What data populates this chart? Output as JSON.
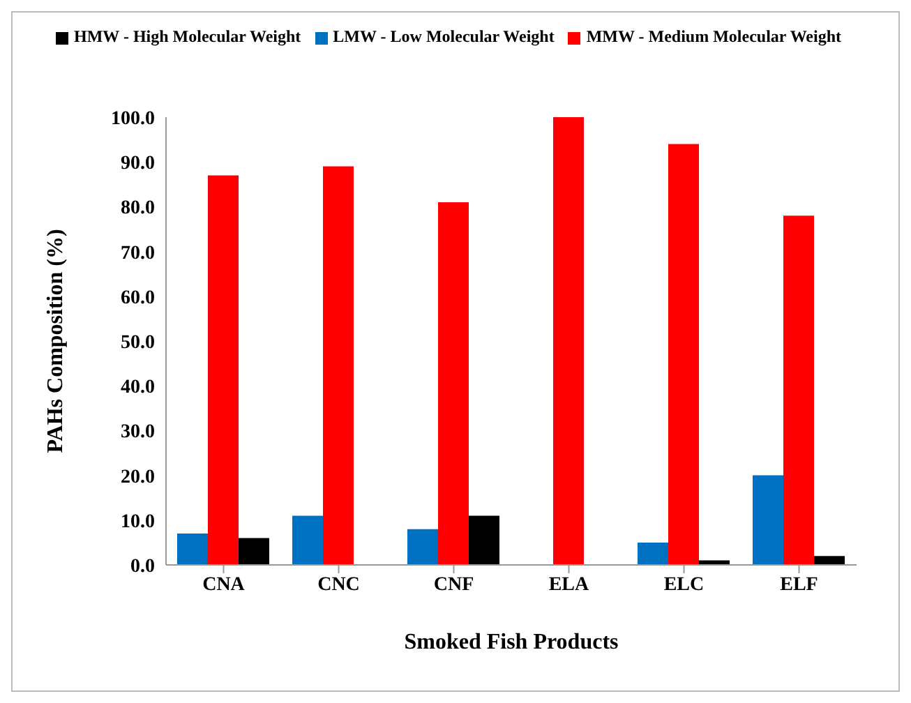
{
  "chart_data": {
    "type": "bar",
    "xlabel": "Smoked Fish Products",
    "ylabel": "PAHs Composition (%)",
    "categories": [
      "CNA",
      "CNC",
      "CNF",
      "ELA",
      "ELC",
      "ELF"
    ],
    "series": [
      {
        "name": "LMW - Low Molecular Weight",
        "color": "#0070c0",
        "values": [
          7,
          11,
          8,
          0,
          5,
          20
        ]
      },
      {
        "name": "MMW - Medium Molecular Weight",
        "color": "#ff0000",
        "values": [
          87,
          89,
          81,
          100,
          94,
          78
        ]
      },
      {
        "name": "HMW - High Molecular Weight",
        "color": "#000000",
        "values": [
          6,
          0,
          11,
          0,
          1,
          2
        ]
      }
    ],
    "ylim": [
      0,
      100
    ],
    "yticks": [
      {
        "value": 0,
        "label": "0.0"
      },
      {
        "value": 10,
        "label": "10.0"
      },
      {
        "value": 20,
        "label": "20.0"
      },
      {
        "value": 30,
        "label": "30.0"
      },
      {
        "value": 40,
        "label": "40.0"
      },
      {
        "value": 50,
        "label": "50.0"
      },
      {
        "value": 60,
        "label": "60.0"
      },
      {
        "value": 70,
        "label": "70.0"
      },
      {
        "value": 80,
        "label": "80.0"
      },
      {
        "value": 90,
        "label": "90.0"
      },
      {
        "value": 100,
        "label": "100.0"
      }
    ],
    "grid": false,
    "legend": "top"
  }
}
